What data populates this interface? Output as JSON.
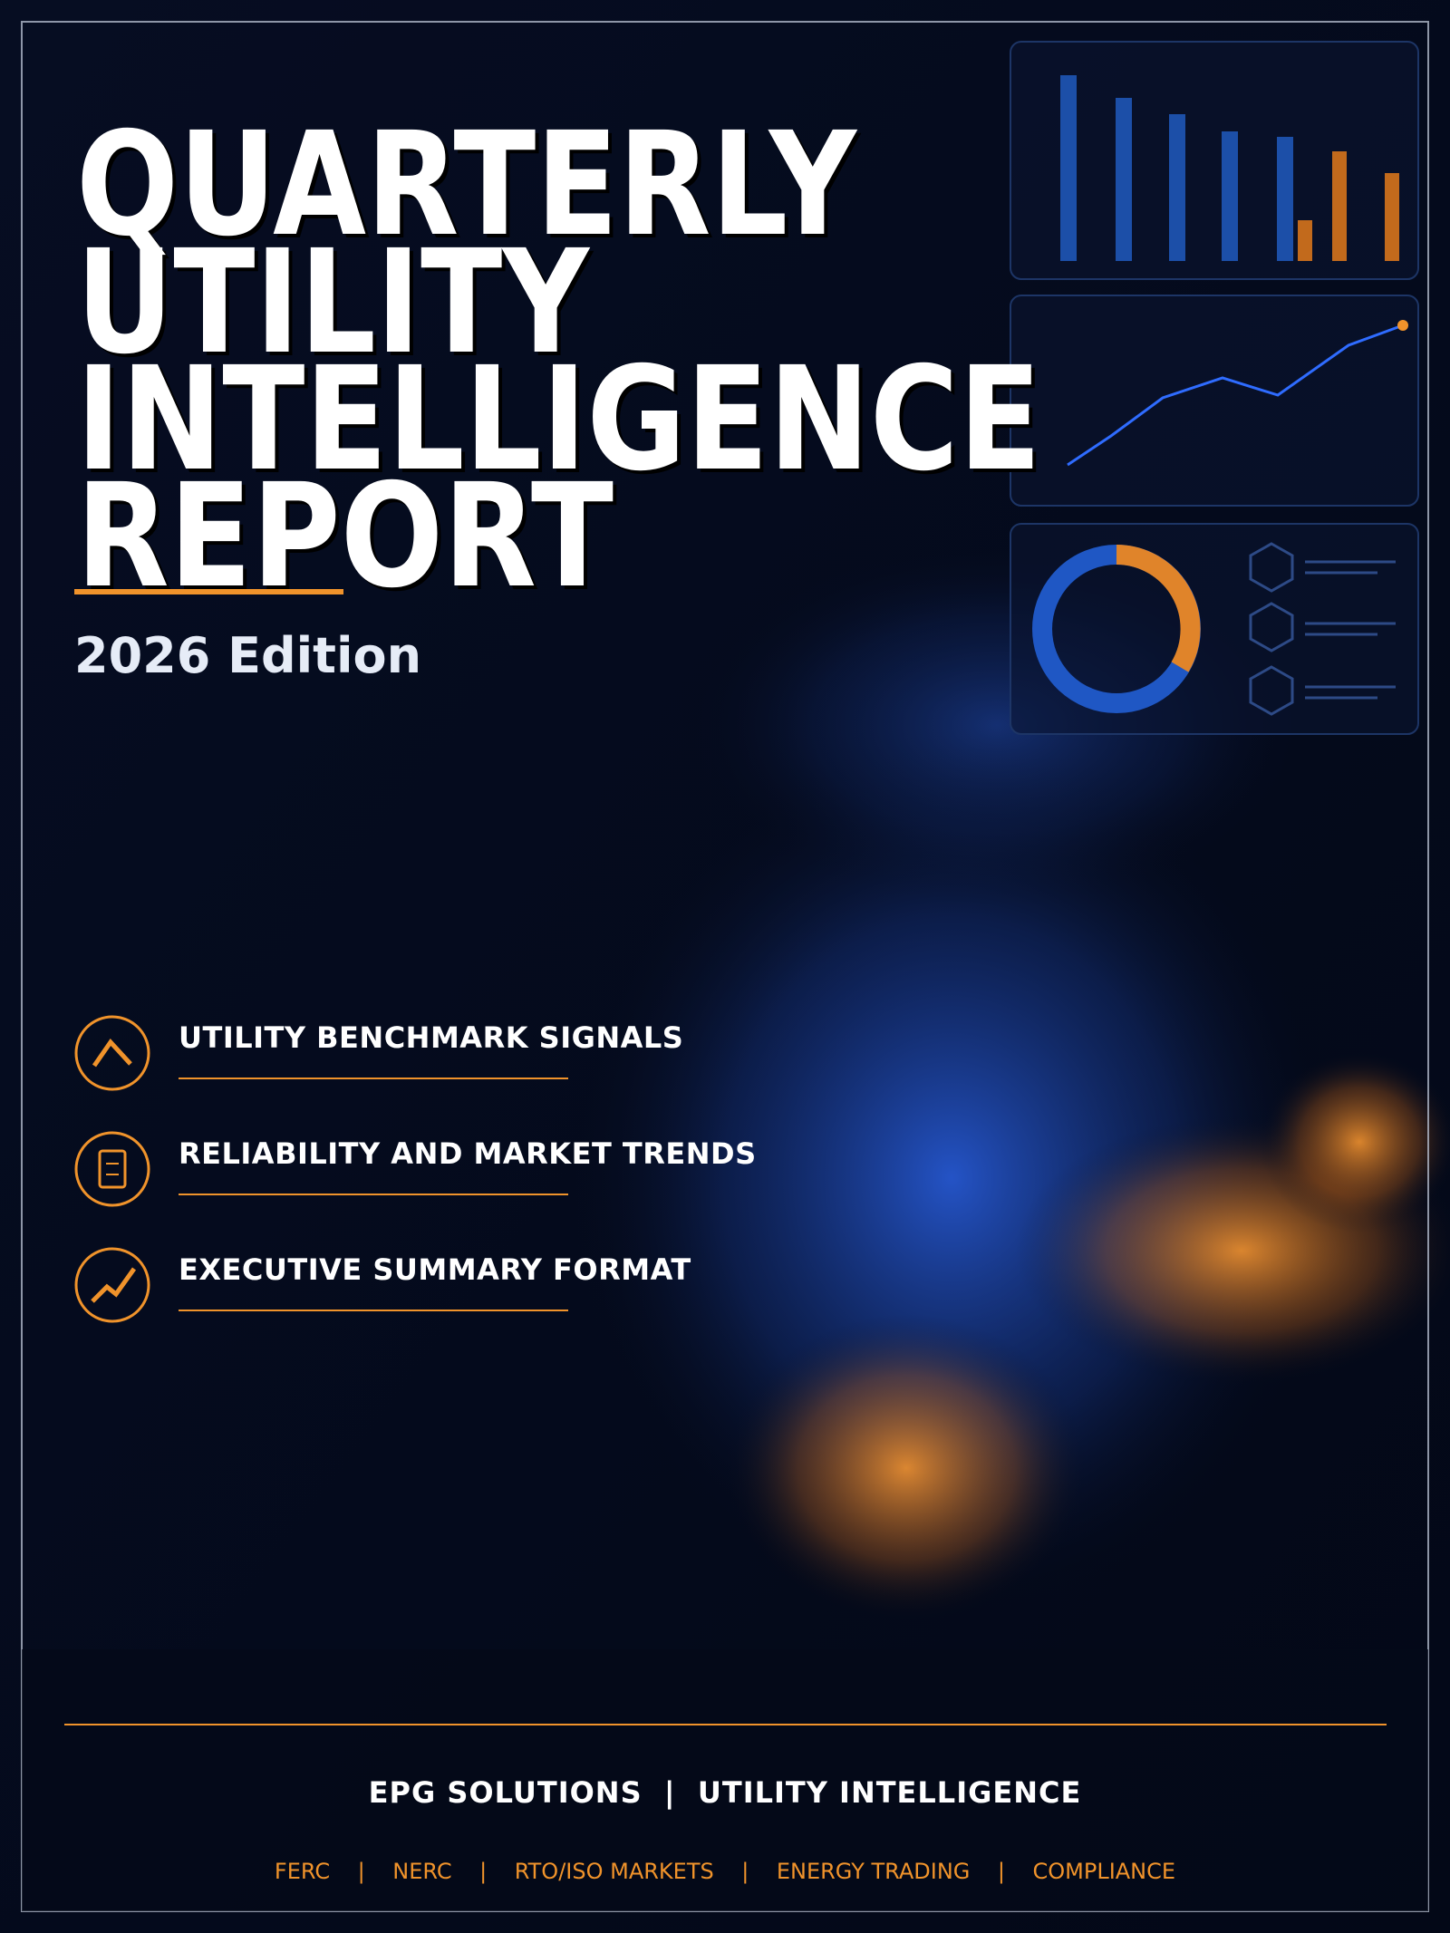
{
  "header": {
    "title_lines": [
      "QUARTERLY",
      "UTILITY",
      "INTELLIGENCE",
      "REPORT"
    ],
    "edition": "2026 Edition"
  },
  "features": [
    "UTILITY BENCHMARK SIGNALS",
    "RELIABILITY AND MARKET TRENDS",
    "EXECUTIVE SUMMARY FORMAT"
  ],
  "footer": {
    "brand": "EPG SOLUTIONS  |  UTILITY INTELLIGENCE",
    "tags": "FERC    |    NERC    |    RTO/ISO MARKETS    |    ENERGY TRADING    |    COMPLIANCE"
  }
}
